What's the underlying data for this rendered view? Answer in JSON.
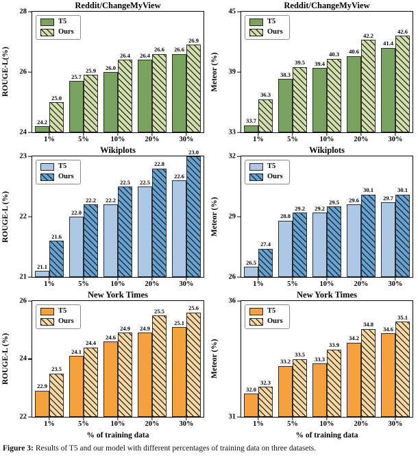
{
  "caption": {
    "label": "Figure 3:",
    "text": "Results of T5 and our model with different percentages of training data on three datasets."
  },
  "chart_data": [
    {
      "type": "bar",
      "title": "Reddit/ChangeMyView",
      "ylabel": "ROUGE-L(%)",
      "xlabel": "",
      "categories": [
        "1%",
        "5%",
        "10%",
        "20%",
        "30%"
      ],
      "series": [
        {
          "name": "T5",
          "color": "#79a25e",
          "hatch": false,
          "values": [
            24.2,
            25.7,
            26.0,
            26.4,
            26.6
          ]
        },
        {
          "name": "Ours",
          "color": "#d3e0ac",
          "hatch": true,
          "values": [
            25.0,
            25.9,
            26.4,
            26.6,
            26.9
          ]
        }
      ],
      "ylim": [
        24,
        28
      ],
      "yticks": [
        24,
        26,
        28
      ],
      "grid": false,
      "legend_loc": "upper left"
    },
    {
      "type": "bar",
      "title": "Reddit/ChangeMyView",
      "ylabel": "Meteor (%)",
      "xlabel": "",
      "categories": [
        "1%",
        "5%",
        "10%",
        "20%",
        "30%"
      ],
      "series": [
        {
          "name": "T5",
          "color": "#79a25e",
          "hatch": false,
          "values": [
            33.7,
            38.3,
            39.4,
            40.6,
            41.4
          ]
        },
        {
          "name": "Ours",
          "color": "#d3e0ac",
          "hatch": true,
          "values": [
            36.3,
            39.5,
            40.3,
            42.2,
            42.6
          ]
        }
      ],
      "ylim": [
        33,
        45
      ],
      "yticks": [
        33,
        39,
        45
      ],
      "grid": false,
      "legend_loc": "upper left"
    },
    {
      "type": "bar",
      "title": "Wikiplots",
      "ylabel": "ROUGE-L (%)",
      "xlabel": "",
      "categories": [
        "1%",
        "5%",
        "10%",
        "20%",
        "30%"
      ],
      "series": [
        {
          "name": "T5",
          "color": "#adc8e6",
          "hatch": false,
          "values": [
            21.1,
            22.0,
            22.2,
            22.5,
            22.6
          ]
        },
        {
          "name": "Ours",
          "color": "#66a3d2",
          "hatch": true,
          "values": [
            21.6,
            22.2,
            22.5,
            22.8,
            23.0
          ]
        }
      ],
      "ylim": [
        21,
        23
      ],
      "yticks": [
        21,
        22,
        23
      ],
      "grid": false,
      "legend_loc": "upper left"
    },
    {
      "type": "bar",
      "title": "Wikiplots",
      "ylabel": "Meteor (%)",
      "xlabel": "",
      "categories": [
        "1%",
        "5%",
        "10%",
        "20%",
        "30%"
      ],
      "series": [
        {
          "name": "T5",
          "color": "#adc8e6",
          "hatch": false,
          "values": [
            26.5,
            28.8,
            29.2,
            29.6,
            29.7
          ]
        },
        {
          "name": "Ours",
          "color": "#66a3d2",
          "hatch": true,
          "values": [
            27.4,
            29.2,
            29.5,
            30.1,
            30.1
          ]
        }
      ],
      "ylim": [
        26,
        32
      ],
      "yticks": [
        26,
        29,
        32
      ],
      "grid": false,
      "legend_loc": "upper left"
    },
    {
      "type": "bar",
      "title": "New York Times",
      "ylabel": "ROUGE-L (%)",
      "xlabel": "% of training data",
      "categories": [
        "1%",
        "5%",
        "10%",
        "20%",
        "30%"
      ],
      "series": [
        {
          "name": "T5",
          "color": "#f5a13d",
          "hatch": false,
          "values": [
            22.9,
            24.1,
            24.6,
            24.9,
            25.1
          ]
        },
        {
          "name": "Ours",
          "color": "#fbd9a3",
          "hatch": true,
          "values": [
            23.5,
            24.4,
            24.9,
            25.5,
            25.6
          ]
        }
      ],
      "ylim": [
        22,
        26
      ],
      "yticks": [
        22,
        24,
        26
      ],
      "grid": false,
      "legend_loc": "upper left"
    },
    {
      "type": "bar",
      "title": "New York Times",
      "ylabel": "Meteor (%)",
      "xlabel": "% of training data",
      "categories": [
        "1%",
        "5%",
        "10%",
        "20%",
        "30%"
      ],
      "series": [
        {
          "name": "T5",
          "color": "#f5a13d",
          "hatch": false,
          "values": [
            32.0,
            33.2,
            33.3,
            34.2,
            34.6
          ]
        },
        {
          "name": "Ours",
          "color": "#fbd9a3",
          "hatch": true,
          "values": [
            32.3,
            33.5,
            33.9,
            34.8,
            35.1
          ]
        }
      ],
      "ylim": [
        31,
        36
      ],
      "yticks": [
        31,
        36
      ],
      "grid": false,
      "legend_loc": "upper left"
    }
  ]
}
